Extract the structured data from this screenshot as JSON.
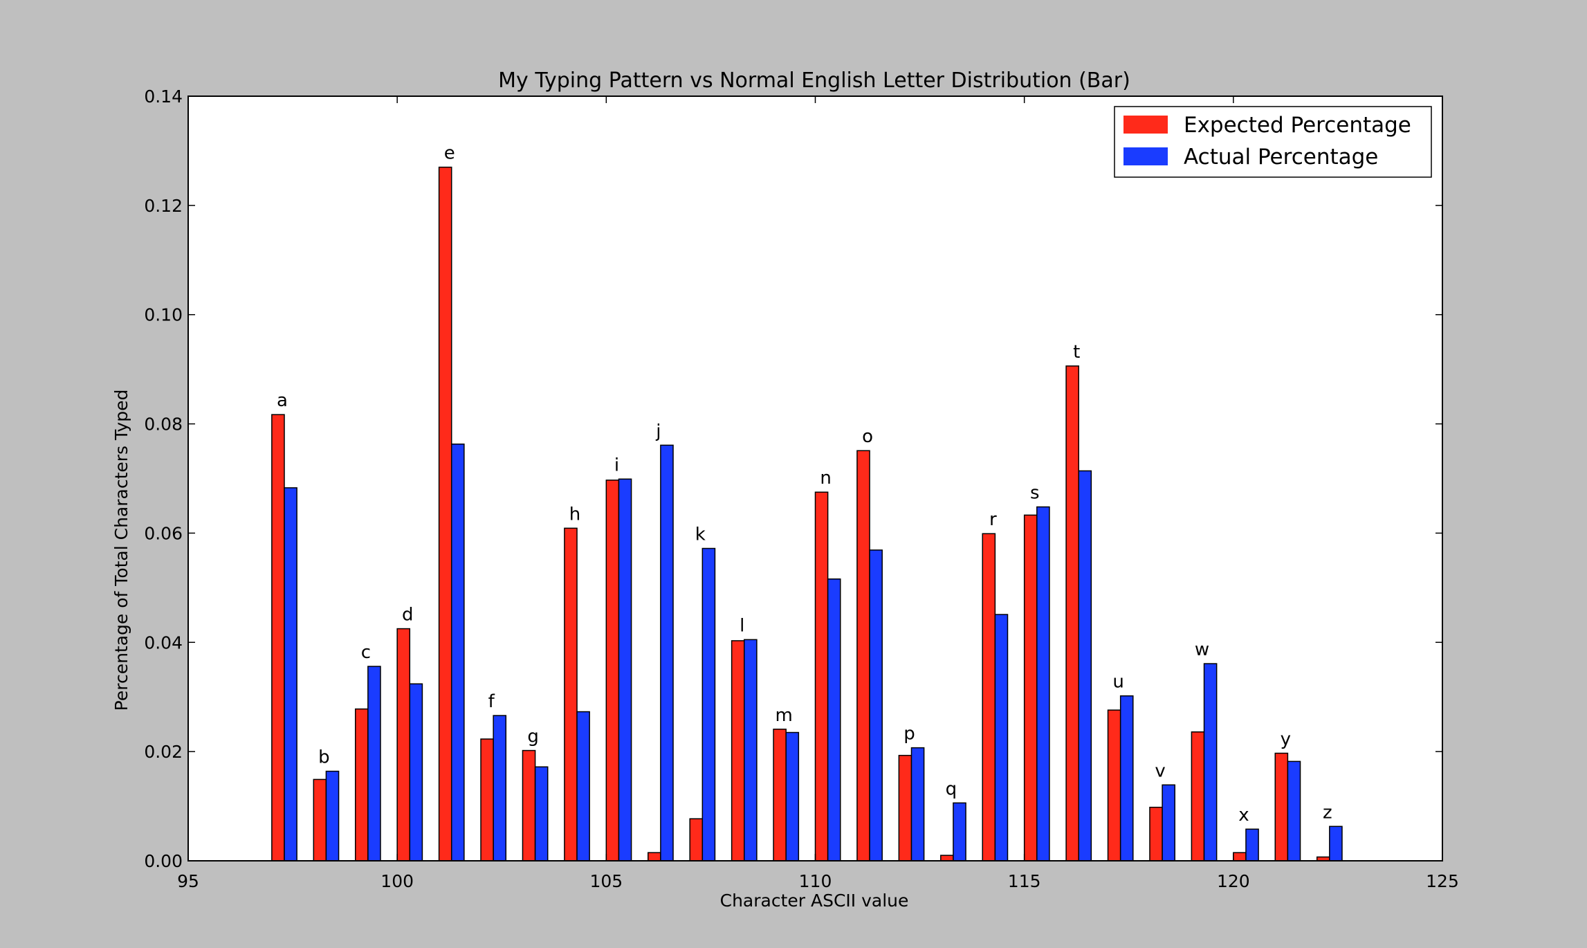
{
  "chart_data": {
    "type": "bar",
    "title": "My Typing Pattern vs Normal English Letter Distribution (Bar)",
    "xlabel": "Character ASCII value",
    "ylabel": "Percentage of Total Characters Typed",
    "xlim": [
      95,
      125
    ],
    "ylim": [
      0,
      0.14
    ],
    "xticks": [
      "95",
      "100",
      "105",
      "110",
      "115",
      "120",
      "125"
    ],
    "yticks": [
      "0.00",
      "0.02",
      "0.04",
      "0.06",
      "0.08",
      "0.10",
      "0.12",
      "0.14"
    ],
    "grid": false,
    "legend_position": "top-right",
    "x": [
      97,
      98,
      99,
      100,
      101,
      102,
      103,
      104,
      105,
      106,
      107,
      108,
      109,
      110,
      111,
      112,
      113,
      114,
      115,
      116,
      117,
      118,
      119,
      120,
      121,
      122
    ],
    "bar_labels": [
      "a",
      "b",
      "c",
      "d",
      "e",
      "f",
      "g",
      "h",
      "i",
      "j",
      "k",
      "l",
      "m",
      "n",
      "o",
      "p",
      "q",
      "r",
      "s",
      "t",
      "u",
      "v",
      "w",
      "x",
      "y",
      "z"
    ],
    "series": [
      {
        "name": "Expected Percentage",
        "color": "#ff2a1a",
        "values": [
          0.0817,
          0.0149,
          0.0278,
          0.0425,
          0.127,
          0.0223,
          0.0202,
          0.0609,
          0.0697,
          0.0015,
          0.0077,
          0.0403,
          0.0241,
          0.0675,
          0.0751,
          0.0193,
          0.001,
          0.0599,
          0.0633,
          0.0906,
          0.0276,
          0.0098,
          0.0236,
          0.0015,
          0.0197,
          0.0007
        ]
      },
      {
        "name": "Actual Percentage",
        "color": "#1a3cff",
        "values": [
          0.0683,
          0.0164,
          0.0356,
          0.0324,
          0.0763,
          0.0266,
          0.0172,
          0.0273,
          0.0699,
          0.0761,
          0.0572,
          0.0405,
          0.0235,
          0.0516,
          0.0569,
          0.0207,
          0.0106,
          0.0451,
          0.0648,
          0.0714,
          0.0302,
          0.0139,
          0.0361,
          0.0058,
          0.0182,
          0.0063
        ]
      }
    ]
  }
}
